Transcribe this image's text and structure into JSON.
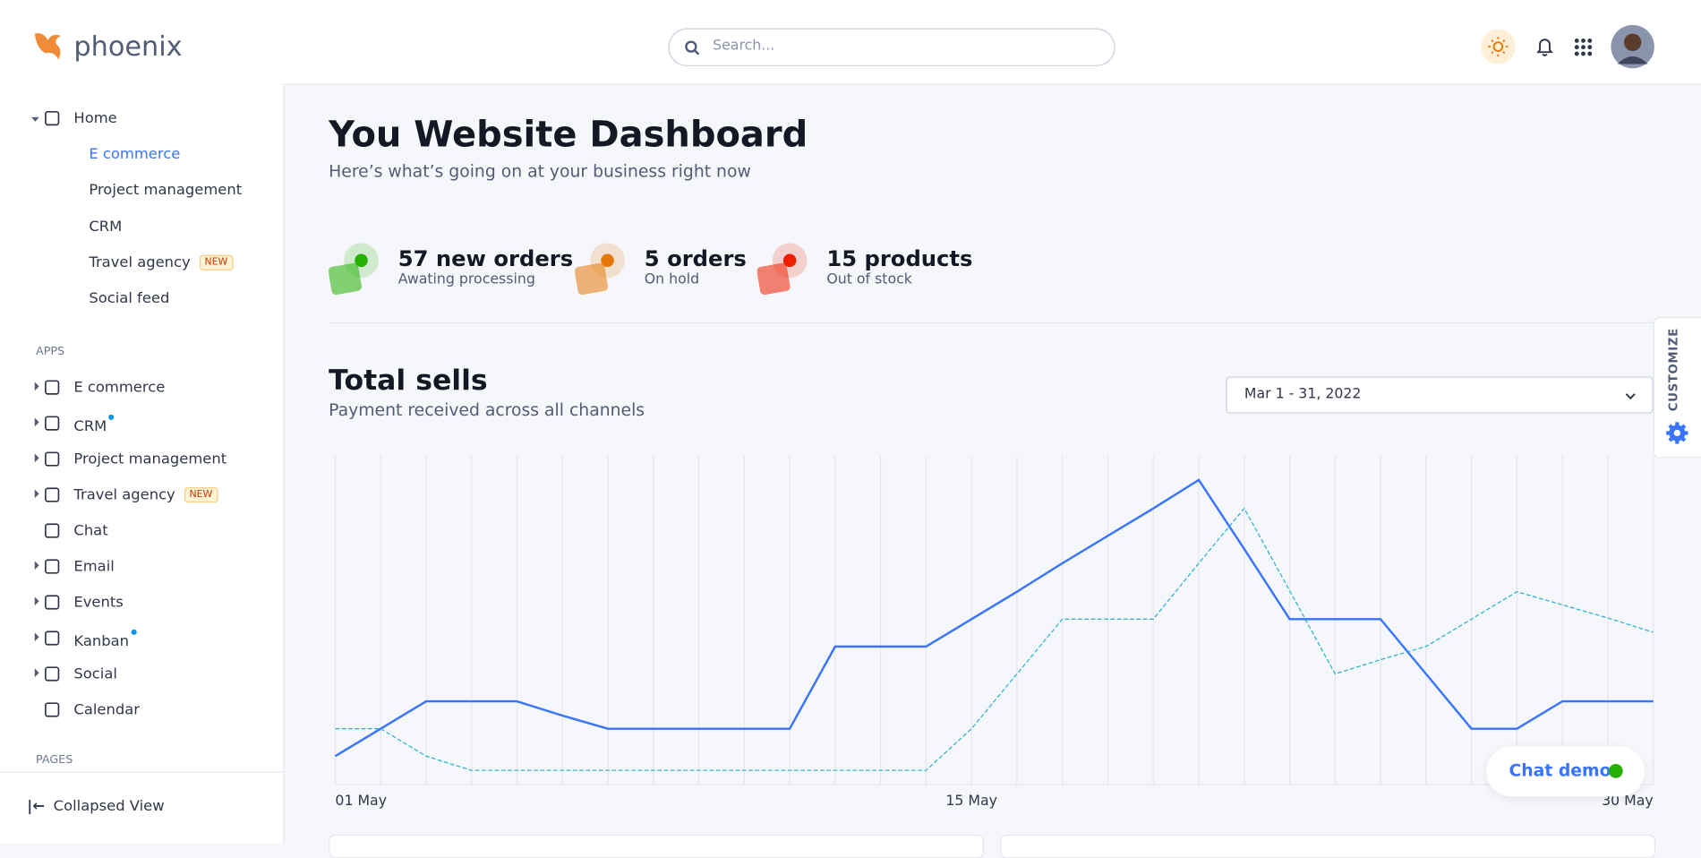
{
  "header": {
    "logo": "phoenix",
    "search_placeholder": "Search..."
  },
  "sidebar": {
    "home": "Home",
    "home_items": [
      {
        "label": "E commerce"
      },
      {
        "label": "Project management"
      },
      {
        "label": "CRM"
      },
      {
        "label": "Travel agency",
        "badge": "NEW"
      },
      {
        "label": "Social feed"
      }
    ],
    "apps_label": "APPS",
    "apps": [
      {
        "label": "E commerce",
        "arrow": true
      },
      {
        "label": "CRM",
        "arrow": true,
        "dot": true
      },
      {
        "label": "Project management",
        "arrow": true
      },
      {
        "label": "Travel agency",
        "arrow": true,
        "badge": "NEW"
      },
      {
        "label": "Chat",
        "arrow": false
      },
      {
        "label": "Email",
        "arrow": true
      },
      {
        "label": "Events",
        "arrow": true
      },
      {
        "label": "Kanban",
        "arrow": true,
        "dot": true
      },
      {
        "label": "Social",
        "arrow": true
      },
      {
        "label": "Calendar",
        "arrow": false
      }
    ],
    "pages_label": "PAGES",
    "collapse": "Collapsed View"
  },
  "dashboard": {
    "title": "You Website Dashboard",
    "subtitle": "Here’s what’s going on at your business right now"
  },
  "stats": [
    {
      "value": "57 new orders",
      "caption": "Awating processing",
      "color": "#25b003"
    },
    {
      "value": "5 orders",
      "caption": "On hold",
      "color": "#e5780b"
    },
    {
      "value": "15 products",
      "caption": "Out of stock",
      "color": "#ec1f00"
    }
  ],
  "total_sells": {
    "title": "Total sells",
    "subtitle": "Payment received across all channels",
    "date_range": "Mar 1 - 31, 2022"
  },
  "chart_data": {
    "type": "line",
    "categories": [
      "01 May",
      null,
      null,
      null,
      null,
      null,
      null,
      null,
      null,
      null,
      null,
      null,
      null,
      null,
      "15 May",
      null,
      null,
      null,
      null,
      null,
      null,
      null,
      null,
      null,
      null,
      null,
      null,
      null,
      null,
      "30 May"
    ],
    "series": [
      {
        "color": "#3874ff",
        "dashed": false,
        "values": [
          26,
          51,
          76,
          76,
          76,
          63,
          51,
          51,
          51,
          51,
          51,
          126,
          126,
          126,
          151,
          176,
          202,
          227,
          252,
          278,
          215,
          151,
          151,
          151,
          101,
          51,
          51,
          76,
          76,
          76
        ]
      },
      {
        "color": "#25b0d3",
        "dashed": true,
        "values": [
          51,
          51,
          26,
          13,
          13,
          13,
          13,
          13,
          13,
          13,
          13,
          13,
          13,
          13,
          51,
          101,
          151,
          151,
          151,
          202,
          252,
          177,
          101,
          114,
          126,
          151,
          176,
          164,
          152,
          139
        ]
      }
    ],
    "ylim": [
      0,
      300
    ],
    "grid": true
  },
  "customize": "CUSTOMIZE",
  "chat": "Chat demo"
}
